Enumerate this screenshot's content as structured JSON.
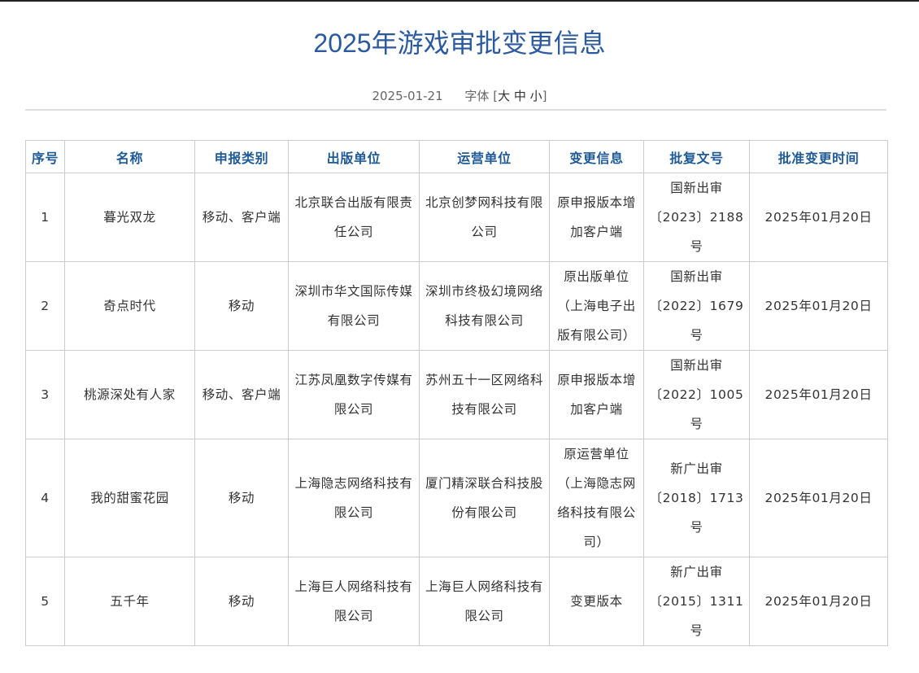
{
  "article": {
    "title": "2025年游戏审批变更信息",
    "date": "2025-01-21",
    "font_size_label": "字体",
    "font_sizes": [
      "大",
      "中",
      "小"
    ]
  },
  "colors": {
    "title": "#2b5a9e",
    "header": "#1e5a96",
    "border": "#cccccc"
  },
  "table": {
    "headers": [
      "序号",
      "名称",
      "申报类别",
      "出版单位",
      "运营单位",
      "变更信息",
      "批复文号",
      "批准变更时间"
    ],
    "rows": [
      [
        "1",
        "暮光双龙",
        "移动、客户端",
        "北京联合出版有限责任公司",
        "北京创梦网科技有限公司",
        "原申报版本增加客户端",
        "国新出审\n〔2023〕2188\n号",
        "2025年01月20日"
      ],
      [
        "2",
        "奇点时代",
        "移动",
        "深圳市华文国际传媒有限公司",
        "深圳市终极幻境网络科技有限公司",
        "原出版单位（上海电子出版有限公司）",
        "国新出审\n〔2022〕1679\n号",
        "2025年01月20日"
      ],
      [
        "3",
        "桃源深处有人家",
        "移动、客户端",
        "江苏凤凰数字传媒有限公司",
        "苏州五十一区网络科技有限公司",
        "原申报版本增加客户端",
        "国新出审\n〔2022〕1005\n号",
        "2025年01月20日"
      ],
      [
        "4",
        "我的甜蜜花园",
        "移动",
        "上海隐志网络科技有限公司",
        "厦门精深联合科技股份有限公司",
        "原运营单位（上海隐志网络科技有限公司）",
        "新广出审\n〔2018〕1713\n号",
        "2025年01月20日"
      ],
      [
        "5",
        "五千年",
        "移动",
        "上海巨人网络科技有限公司",
        "上海巨人网络科技有限公司",
        "变更版本",
        "新广出审\n〔2015〕1311\n号",
        "2025年01月20日"
      ]
    ]
  }
}
